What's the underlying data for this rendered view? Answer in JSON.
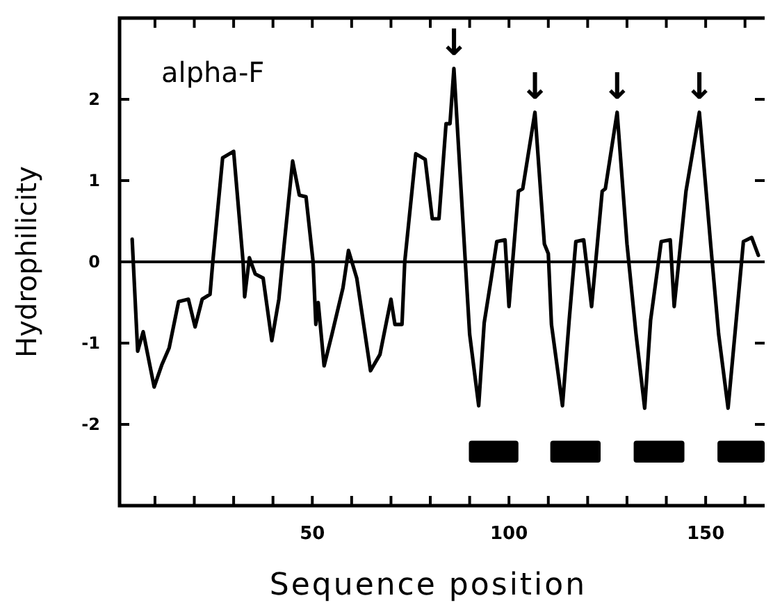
{
  "chart_data": {
    "type": "line",
    "xlabel": "Sequence position",
    "ylabel": "Hydrophilicity",
    "xlim": [
      1,
      165
    ],
    "ylim": [
      -3,
      3
    ],
    "xticks": [
      {
        "value": 10,
        "label": null
      },
      {
        "value": 20,
        "label": null
      },
      {
        "value": 30,
        "label": null
      },
      {
        "value": 40,
        "label": null
      },
      50,
      {
        "value": 60,
        "label": null
      },
      {
        "value": 70,
        "label": null
      },
      {
        "value": 80,
        "label": null
      },
      {
        "value": 90,
        "label": null
      },
      100,
      {
        "value": 110,
        "label": null
      },
      {
        "value": 120,
        "label": null
      },
      {
        "value": 130,
        "label": null
      },
      {
        "value": 140,
        "label": null
      },
      150,
      {
        "value": 160,
        "label": null
      }
    ],
    "yticks": [
      -2,
      -1,
      0,
      1,
      2
    ],
    "grid": false,
    "marker": "none",
    "line_style": "solid",
    "series": [
      {
        "color": "#000000",
        "x": [
          4.2,
          5.6,
          7,
          9.8,
          11.8,
          13.6,
          16,
          18.5,
          20.2,
          22,
          24,
          24.7,
          27.2,
          30,
          32.4,
          32.8,
          34,
          35.5,
          37.5,
          39.7,
          41.5,
          42.8,
          45,
          46.7,
          48.4,
          50.2,
          50.9,
          51.5,
          53,
          55,
          57.8,
          59.2,
          61.3,
          64.8,
          67.2,
          70,
          71,
          72.8,
          73.5,
          76.3,
          78.7,
          80.5,
          82.2,
          84,
          85,
          86,
          88.9,
          90,
          92.3,
          93.7,
          95.5,
          96.9,
          99,
          100,
          102.4,
          103.5,
          106.6,
          109,
          110,
          110.8,
          113.6,
          115.3,
          117,
          119,
          121,
          123.7,
          124.5,
          127.5,
          130,
          132.3,
          134.5,
          136,
          138.7,
          141,
          142,
          145,
          148.4,
          151.3,
          153.3,
          155.7,
          157.8,
          159.6,
          161.7,
          163.4
        ],
        "values": [
          0.28,
          -1.1,
          -0.86,
          -1.54,
          -1.26,
          -1.06,
          -0.49,
          -0.46,
          -0.8,
          -0.46,
          -0.4,
          0,
          1.28,
          1.36,
          0,
          -0.43,
          0.05,
          -0.15,
          -0.2,
          -0.97,
          -0.46,
          0.19,
          1.24,
          0.82,
          0.8,
          0,
          -0.77,
          -0.5,
          -1.28,
          -0.89,
          -0.32,
          0.14,
          -0.2,
          -1.34,
          -1.14,
          -0.46,
          -0.77,
          -0.77,
          0,
          1.33,
          1.26,
          0.53,
          0.53,
          1.7,
          1.7,
          2.38,
          0,
          -0.89,
          -1.77,
          -0.75,
          -0.2,
          0.25,
          0.27,
          -0.55,
          0.87,
          0.9,
          1.84,
          0.22,
          0.1,
          -0.77,
          -1.77,
          -0.72,
          0.25,
          0.27,
          -0.55,
          0.87,
          0.9,
          1.84,
          0.22,
          -0.89,
          -1.8,
          -0.72,
          0.25,
          0.27,
          -0.55,
          0.87,
          1.84,
          0.2,
          -0.89,
          -1.8,
          -0.7,
          0.25,
          0.3,
          0.08
        ]
      }
    ],
    "ref_lines": [
      {
        "axis": "y",
        "value": 0,
        "color": "#000000"
      }
    ],
    "bands": [
      {
        "axis": "x",
        "from": 89.8,
        "to": 102.4,
        "color": "#000000"
      },
      {
        "axis": "x",
        "from": 110.5,
        "to": 123.3,
        "color": "#000000"
      },
      {
        "axis": "x",
        "from": 131.7,
        "to": 144.6,
        "color": "#000000"
      },
      {
        "axis": "x",
        "from": 153,
        "to": 165,
        "color": "#000000"
      }
    ],
    "annotations": [
      "alpha-F",
      {
        "text": "↓",
        "x": 86,
        "y": 2.38
      },
      {
        "text": "↓",
        "x": 106.6,
        "y": 1.84
      },
      {
        "text": "↓",
        "x": 127.5,
        "y": 1.84
      },
      {
        "text": "↓",
        "x": 148.4,
        "y": 1.84
      }
    ]
  }
}
